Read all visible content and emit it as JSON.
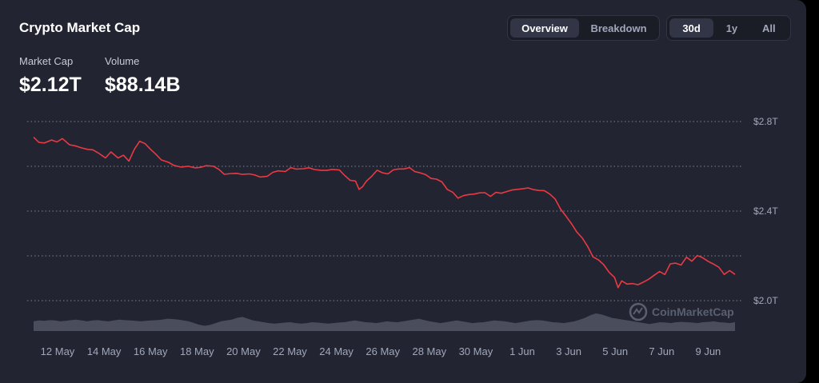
{
  "header": {
    "title": "Crypto Market Cap",
    "view_tabs": [
      {
        "label": "Overview",
        "active": true
      },
      {
        "label": "Breakdown",
        "active": false
      }
    ],
    "range_tabs": [
      {
        "label": "30d",
        "active": true
      },
      {
        "label": "1y",
        "active": false
      },
      {
        "label": "All",
        "active": false
      }
    ]
  },
  "metrics": {
    "market_cap": {
      "label": "Market Cap",
      "value": "$2.12T"
    },
    "volume": {
      "label": "Volume",
      "value": "$88.14B"
    }
  },
  "watermark": "CoinMarketCap",
  "colors": {
    "background": "#222531",
    "line": "#ea3943",
    "volume_fill": "#4a4e5c",
    "grid": "#a1a7bb"
  },
  "chart_data": {
    "type": "line",
    "x_tick_labels": [
      "12 May",
      "14 May",
      "16 May",
      "18 May",
      "20 May",
      "22 May",
      "24 May",
      "26 May",
      "28 May",
      "30 May",
      "1 Jun",
      "3 Jun",
      "5 Jun",
      "7 Jun",
      "9 Jun"
    ],
    "y_tick_labels": [
      "$2.8T",
      "$2.4T",
      "$2.0T"
    ],
    "y_gridlines_T": [
      2.8,
      2.6,
      2.4,
      2.2,
      2.0
    ],
    "ylim_T": [
      2.0,
      2.8
    ],
    "grid": true,
    "x_range_days": [
      0,
      30.3
    ],
    "series": [
      {
        "values_T": [
          [
            0,
            2.73
          ],
          [
            0.3,
            2.71
          ],
          [
            0.6,
            2.7
          ],
          [
            1.0,
            2.72
          ],
          [
            1.3,
            2.71
          ],
          [
            1.6,
            2.72
          ],
          [
            2.0,
            2.7
          ],
          [
            2.3,
            2.69
          ],
          [
            2.7,
            2.68
          ],
          [
            3.0,
            2.68
          ],
          [
            3.3,
            2.67
          ],
          [
            3.6,
            2.66
          ],
          [
            4.0,
            2.64
          ],
          [
            4.3,
            2.66
          ],
          [
            4.7,
            2.64
          ],
          [
            5.0,
            2.65
          ],
          [
            5.3,
            2.62
          ],
          [
            5.6,
            2.68
          ],
          [
            5.9,
            2.71
          ],
          [
            6.2,
            2.7
          ],
          [
            6.5,
            2.68
          ],
          [
            6.8,
            2.65
          ],
          [
            7.1,
            2.63
          ],
          [
            7.5,
            2.62
          ],
          [
            7.8,
            2.6
          ],
          [
            8.2,
            2.6
          ],
          [
            8.6,
            2.6
          ],
          [
            9.0,
            2.59
          ],
          [
            9.3,
            2.6
          ],
          [
            9.6,
            2.6
          ],
          [
            10.0,
            2.6
          ],
          [
            10.3,
            2.59
          ],
          [
            10.6,
            2.56
          ],
          [
            11.0,
            2.57
          ],
          [
            11.3,
            2.57
          ],
          [
            11.6,
            2.56
          ],
          [
            12.0,
            2.57
          ],
          [
            12.3,
            2.56
          ],
          [
            12.6,
            2.55
          ],
          [
            13.0,
            2.56
          ],
          [
            13.3,
            2.57
          ],
          [
            13.6,
            2.58
          ],
          [
            14.0,
            2.58
          ],
          [
            14.3,
            2.59
          ],
          [
            14.6,
            2.59
          ],
          [
            15.0,
            2.59
          ],
          [
            15.3,
            2.59
          ],
          [
            15.6,
            2.59
          ],
          [
            16.0,
            2.58
          ],
          [
            16.3,
            2.58
          ],
          [
            16.6,
            2.59
          ],
          [
            17.0,
            2.58
          ],
          [
            17.3,
            2.56
          ],
          [
            17.6,
            2.54
          ],
          [
            17.9,
            2.53
          ],
          [
            18.1,
            2.5
          ],
          [
            18.3,
            2.51
          ],
          [
            18.5,
            2.53
          ],
          [
            18.8,
            2.56
          ],
          [
            19.1,
            2.58
          ],
          [
            19.4,
            2.57
          ],
          [
            19.7,
            2.57
          ],
          [
            20.0,
            2.58
          ],
          [
            20.3,
            2.59
          ],
          [
            20.6,
            2.59
          ],
          [
            20.9,
            2.59
          ],
          [
            21.2,
            2.58
          ],
          [
            21.5,
            2.57
          ],
          [
            21.8,
            2.56
          ],
          [
            22.1,
            2.55
          ],
          [
            22.4,
            2.54
          ],
          [
            22.7,
            2.53
          ],
          [
            23.0,
            2.5
          ],
          [
            23.3,
            2.48
          ],
          [
            23.6,
            2.46
          ],
          [
            23.9,
            2.47
          ],
          [
            24.2,
            2.47
          ],
          [
            24.5,
            2.48
          ],
          [
            24.8,
            2.48
          ],
          [
            25.1,
            2.48
          ],
          [
            25.4,
            2.47
          ],
          [
            25.7,
            2.48
          ],
          [
            26.0,
            2.48
          ],
          [
            26.3,
            2.49
          ],
          [
            26.6,
            2.49
          ],
          [
            26.9,
            2.5
          ],
          [
            27.2,
            2.5
          ],
          [
            27.5,
            2.5
          ],
          [
            27.8,
            2.5
          ],
          [
            28.1,
            2.49
          ],
          [
            28.4,
            2.49
          ],
          [
            28.7,
            2.48
          ],
          [
            29.0,
            2.45
          ],
          [
            29.3,
            2.41
          ],
          [
            29.6,
            2.38
          ],
          [
            29.9,
            2.34
          ],
          [
            30.2,
            2.31
          ],
          [
            30.5,
            2.28
          ],
          [
            30.8,
            2.24
          ],
          [
            31.1,
            2.2
          ],
          [
            31.4,
            2.18
          ],
          [
            31.7,
            2.16
          ],
          [
            32.0,
            2.13
          ],
          [
            32.3,
            2.1
          ],
          [
            32.5,
            2.06
          ],
          [
            32.7,
            2.09
          ],
          [
            33.0,
            2.07
          ],
          [
            33.3,
            2.08
          ],
          [
            33.6,
            2.07
          ],
          [
            33.9,
            2.08
          ],
          [
            34.2,
            2.1
          ],
          [
            34.5,
            2.11
          ],
          [
            34.8,
            2.13
          ],
          [
            35.1,
            2.12
          ],
          [
            35.4,
            2.16
          ],
          [
            35.7,
            2.17
          ],
          [
            36.0,
            2.16
          ],
          [
            36.3,
            2.19
          ],
          [
            36.6,
            2.18
          ],
          [
            36.9,
            2.2
          ],
          [
            37.2,
            2.19
          ],
          [
            37.5,
            2.18
          ],
          [
            37.8,
            2.16
          ],
          [
            38.1,
            2.15
          ],
          [
            38.4,
            2.12
          ],
          [
            38.7,
            2.13
          ],
          [
            39.0,
            2.12
          ]
        ]
      }
    ],
    "volume_relative": [
      0.55,
      0.6,
      0.58,
      0.62,
      0.6,
      0.55,
      0.58,
      0.62,
      0.65,
      0.6,
      0.55,
      0.6,
      0.62,
      0.58,
      0.55,
      0.6,
      0.65,
      0.62,
      0.6,
      0.58,
      0.55,
      0.58,
      0.6,
      0.62,
      0.65,
      0.7,
      0.68,
      0.65,
      0.6,
      0.55,
      0.45,
      0.35,
      0.3,
      0.35,
      0.45,
      0.55,
      0.6,
      0.65,
      0.75,
      0.8,
      0.7,
      0.6,
      0.55,
      0.5,
      0.45,
      0.42,
      0.45,
      0.48,
      0.5,
      0.45,
      0.42,
      0.45,
      0.5,
      0.48,
      0.45,
      0.42,
      0.45,
      0.48,
      0.5,
      0.55,
      0.6,
      0.55,
      0.5,
      0.48,
      0.45,
      0.5,
      0.55,
      0.52,
      0.5,
      0.55,
      0.6,
      0.65,
      0.7,
      0.62,
      0.55,
      0.5,
      0.45,
      0.5,
      0.55,
      0.6,
      0.55,
      0.5,
      0.45,
      0.48,
      0.5,
      0.55,
      0.6,
      0.58,
      0.55,
      0.5,
      0.45,
      0.5,
      0.55,
      0.6,
      0.62,
      0.6,
      0.55,
      0.5,
      0.48,
      0.45,
      0.5,
      0.55,
      0.65,
      0.75,
      0.9,
      1.0,
      0.95,
      0.85,
      0.75,
      0.7,
      0.65,
      0.6,
      0.55,
      0.5,
      0.45,
      0.4,
      0.45,
      0.5,
      0.48,
      0.45,
      0.5,
      0.52,
      0.5,
      0.48,
      0.45,
      0.5,
      0.52,
      0.55,
      0.5,
      0.48,
      0.45,
      0.5
    ]
  }
}
